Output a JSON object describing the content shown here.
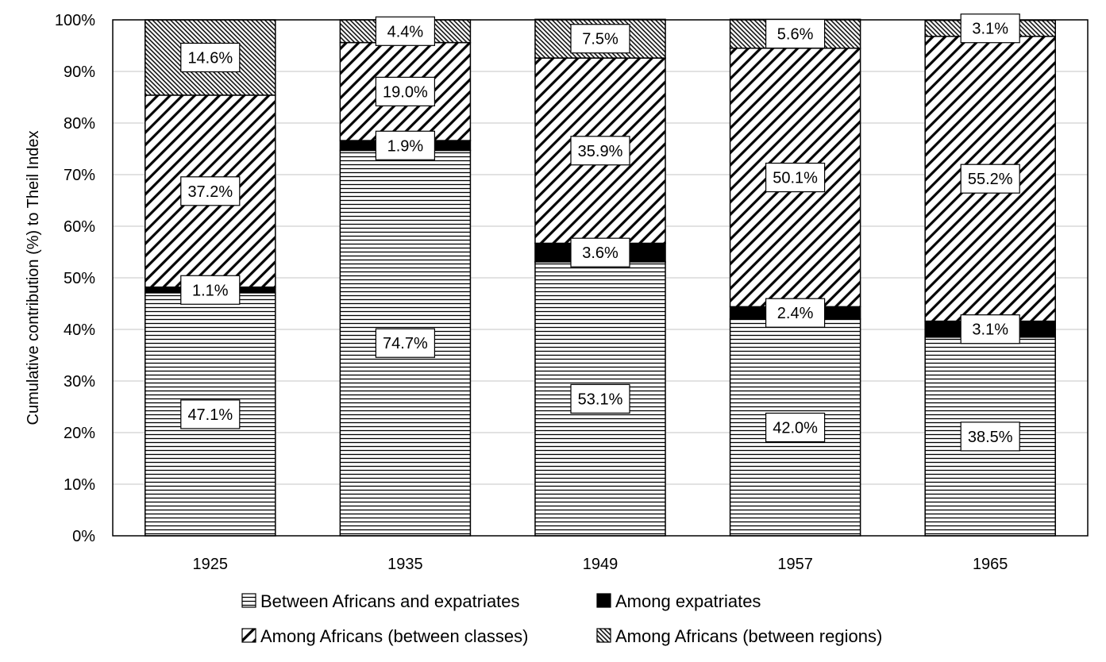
{
  "chart_data": {
    "type": "bar",
    "stacked": true,
    "percent_stacked": true,
    "title": "",
    "xlabel": "",
    "ylabel": "Cumulative contribution (%) to Theil Index",
    "ylim": [
      0,
      100
    ],
    "y_ticks": [
      "0%",
      "10%",
      "20%",
      "30%",
      "40%",
      "50%",
      "60%",
      "70%",
      "80%",
      "90%",
      "100%"
    ],
    "categories": [
      "1925",
      "1935",
      "1949",
      "1957",
      "1965"
    ],
    "grid": true,
    "legend_position": "bottom",
    "series": [
      {
        "name": "Between Africans and expatriates",
        "pattern": "horizontal-lines",
        "color": "#000000",
        "values": [
          47.1,
          74.7,
          53.1,
          42.0,
          38.5
        ],
        "labels": [
          "47.1%",
          "74.7%",
          "53.1%",
          "42.0%",
          "38.5%"
        ]
      },
      {
        "name": "Among expatriates",
        "pattern": "solid",
        "color": "#000000",
        "values": [
          1.1,
          1.9,
          3.6,
          2.4,
          3.1
        ],
        "labels": [
          "1.1%",
          "1.9%",
          "3.6%",
          "2.4%",
          "3.1%"
        ]
      },
      {
        "name": "Among Africans (between classes)",
        "pattern": "wide-diagonal",
        "color": "#000000",
        "values": [
          37.2,
          19.0,
          35.9,
          50.1,
          55.2
        ],
        "labels": [
          "37.2%",
          "19.0%",
          "35.9%",
          "50.1%",
          "55.2%"
        ]
      },
      {
        "name": "Among Africans (between regions)",
        "pattern": "dense-diagonal",
        "color": "#000000",
        "values": [
          14.6,
          4.4,
          7.5,
          5.6,
          3.1
        ],
        "labels": [
          "14.6%",
          "4.4%",
          "7.5%",
          "5.6%",
          "3.1%"
        ]
      }
    ]
  }
}
